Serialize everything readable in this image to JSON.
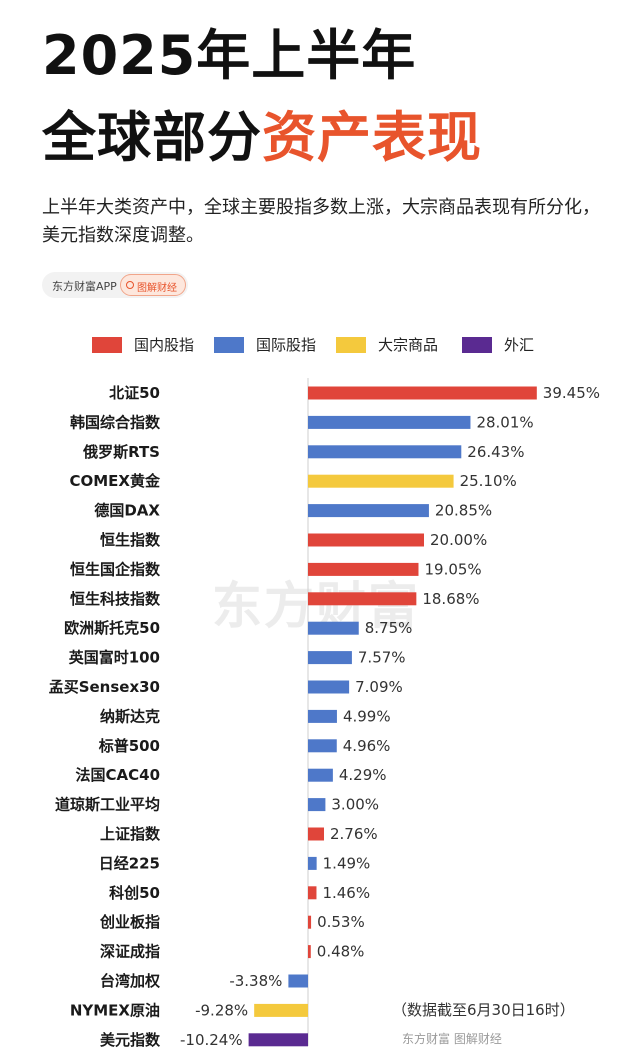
{
  "title_line1": "2025年上半年",
  "title_line2_plain": "全球部分",
  "title_line2_accent": "资产表现",
  "subtitle": "上半年大类资产中，全球主要股指多数上涨，大宗商品表现有所分化，美元指数深度调整。",
  "badge": {
    "left": "东方财富APP",
    "right": "图解财经"
  },
  "watermark": "东方财富",
  "note": "（数据截至6月30日16时）",
  "footer": "东方财富 图解财经",
  "legend": [
    {
      "label": "国内股指",
      "color": "#e0453a"
    },
    {
      "label": "国际股指",
      "color": "#4e78c9"
    },
    {
      "label": "大宗商品",
      "color": "#f4c93d"
    },
    {
      "label": "外汇",
      "color": "#5a2a91"
    }
  ],
  "chart_data": {
    "type": "bar",
    "orientation": "horizontal",
    "unit": "%",
    "series_colors": {
      "国内股指": "#e0453a",
      "国际股指": "#4e78c9",
      "大宗商品": "#f4c93d",
      "外汇": "#5a2a91"
    },
    "items": [
      {
        "label": "北证50",
        "value": 39.45,
        "display": "39.45%",
        "group": "国内股指"
      },
      {
        "label": "韩国综合指数",
        "value": 28.01,
        "display": "28.01%",
        "group": "国际股指"
      },
      {
        "label": "俄罗斯RTS",
        "value": 26.43,
        "display": "26.43%",
        "group": "国际股指"
      },
      {
        "label": "COMEX黄金",
        "value": 25.1,
        "display": "25.10%",
        "group": "大宗商品"
      },
      {
        "label": "德国DAX",
        "value": 20.85,
        "display": "20.85%",
        "group": "国际股指"
      },
      {
        "label": "恒生指数",
        "value": 20.0,
        "display": "20.00%",
        "group": "国内股指"
      },
      {
        "label": "恒生国企指数",
        "value": 19.05,
        "display": "19.05%",
        "group": "国内股指"
      },
      {
        "label": "恒生科技指数",
        "value": 18.68,
        "display": "18.68%",
        "group": "国内股指"
      },
      {
        "label": "欧洲斯托克50",
        "value": 8.75,
        "display": "8.75%",
        "group": "国际股指"
      },
      {
        "label": "英国富时100",
        "value": 7.57,
        "display": "7.57%",
        "group": "国际股指"
      },
      {
        "label": "孟买Sensex30",
        "value": 7.09,
        "display": "7.09%",
        "group": "国际股指"
      },
      {
        "label": "纳斯达克",
        "value": 4.99,
        "display": "4.99%",
        "group": "国际股指"
      },
      {
        "label": "标普500",
        "value": 4.96,
        "display": "4.96%",
        "group": "国际股指"
      },
      {
        "label": "法国CAC40",
        "value": 4.29,
        "display": "4.29%",
        "group": "国际股指"
      },
      {
        "label": "道琼斯工业平均",
        "value": 3.0,
        "display": "3.00%",
        "group": "国际股指"
      },
      {
        "label": "上证指数",
        "value": 2.76,
        "display": "2.76%",
        "group": "国内股指"
      },
      {
        "label": "日经225",
        "value": 1.49,
        "display": "1.49%",
        "group": "国际股指"
      },
      {
        "label": "科创50",
        "value": 1.46,
        "display": "1.46%",
        "group": "国内股指"
      },
      {
        "label": "创业板指",
        "value": 0.53,
        "display": "0.53%",
        "group": "国内股指"
      },
      {
        "label": "深证成指",
        "value": 0.48,
        "display": "0.48%",
        "group": "国内股指"
      },
      {
        "label": "台湾加权",
        "value": -3.38,
        "display": "-3.38%",
        "group": "国际股指"
      },
      {
        "label": "NYMEX原油",
        "value": -9.28,
        "display": "-9.28%",
        "group": "大宗商品"
      },
      {
        "label": "美元指数",
        "value": -10.24,
        "display": "-10.24%",
        "group": "外汇"
      }
    ]
  }
}
